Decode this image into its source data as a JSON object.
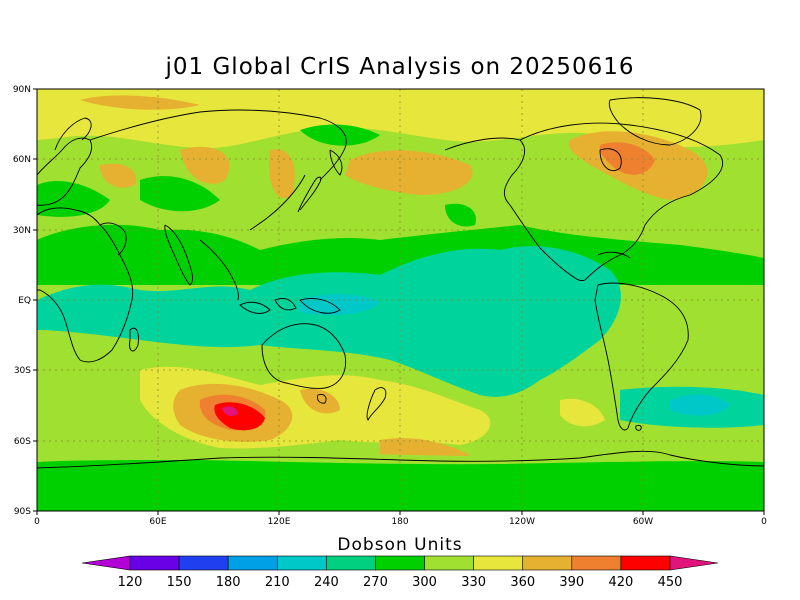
{
  "title": "j01 Global CrIS Analysis on 20250616",
  "lat_labels": [
    "90N",
    "60N",
    "30N",
    "EQ",
    "30S",
    "60S",
    "90S"
  ],
  "lon_labels": [
    "0",
    "60E",
    "120E",
    "180",
    "120W",
    "60W",
    "0"
  ],
  "colorbar": {
    "title": "Dobson Units",
    "ticks": [
      "120",
      "150",
      "180",
      "210",
      "240",
      "270",
      "300",
      "330",
      "360",
      "390",
      "420",
      "450"
    ],
    "colors": [
      "#b300d6",
      "#6a00e6",
      "#2040f0",
      "#00a0e6",
      "#00c8c8",
      "#00d080",
      "#00d000",
      "#a0e030",
      "#e6e63c",
      "#e6b030",
      "#ee8030",
      "#ff0000",
      "#e0147a"
    ]
  },
  "field_colors": {
    "c270": "#00d49c",
    "c300": "#00d000",
    "c330": "#a0e030",
    "c360": "#e6e63c",
    "c390": "#e6b030",
    "c420": "#ee8030",
    "c450": "#ff0000",
    "cMax": "#e0147a",
    "coast": "#000000",
    "grid": "#8a8a2a"
  }
}
